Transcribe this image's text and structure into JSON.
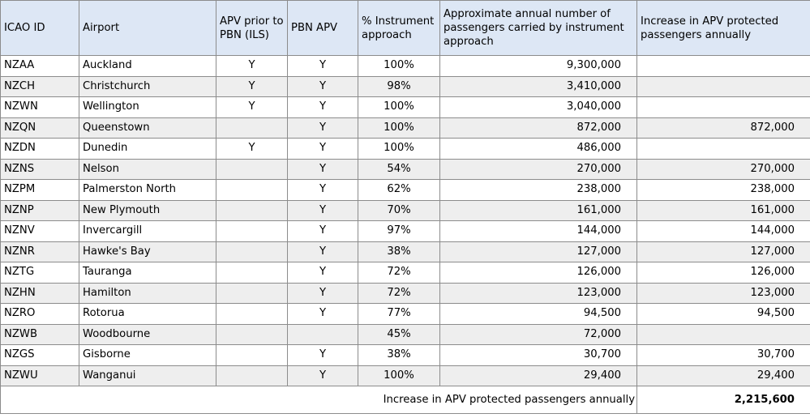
{
  "columns": [
    "ICAO ID",
    "Airport",
    "APV prior to PBN (ILS)",
    "PBN APV",
    "% Instrument approach",
    "Approximate annual number of passengers carried by instrument approach",
    "Increase in APV protected passengers annually"
  ],
  "rows": [
    [
      "NZAA",
      "Auckland",
      "Y",
      "Y",
      "100%",
      "9,300,000",
      ""
    ],
    [
      "NZCH",
      "Christchurch",
      "Y",
      "Y",
      "98%",
      "3,410,000",
      ""
    ],
    [
      "NZWN",
      "Wellington",
      "Y",
      "Y",
      "100%",
      "3,040,000",
      ""
    ],
    [
      "NZQN",
      "Queenstown",
      "",
      "Y",
      "100%",
      "872,000",
      "872,000"
    ],
    [
      "NZDN",
      "Dunedin",
      "Y",
      "Y",
      "100%",
      "486,000",
      ""
    ],
    [
      "NZNS",
      "Nelson",
      "",
      "Y",
      "54%",
      "270,000",
      "270,000"
    ],
    [
      "NZPM",
      "Palmerston North",
      "",
      "Y",
      "62%",
      "238,000",
      "238,000"
    ],
    [
      "NZNP",
      "New Plymouth",
      "",
      "Y",
      "70%",
      "161,000",
      "161,000"
    ],
    [
      "NZNV",
      "Invercargill",
      "",
      "Y",
      "97%",
      "144,000",
      "144,000"
    ],
    [
      "NZNR",
      "Hawke's Bay",
      "",
      "Y",
      "38%",
      "127,000",
      "127,000"
    ],
    [
      "NZTG",
      "Tauranga",
      "",
      "Y",
      "72%",
      "126,000",
      "126,000"
    ],
    [
      "NZHN",
      "Hamilton",
      "",
      "Y",
      "72%",
      "123,000",
      "123,000"
    ],
    [
      "NZRO",
      "Rotorua",
      "",
      "Y",
      "77%",
      "94,500",
      "94,500"
    ],
    [
      "NZWB",
      "Woodbourne",
      "",
      "",
      "45%",
      "72,000",
      ""
    ],
    [
      "NZGS",
      "Gisborne",
      "",
      "Y",
      "38%",
      "30,700",
      "30,700"
    ],
    [
      "NZWU",
      "Wanganui",
      "",
      "Y",
      "100%",
      "29,400",
      "29,400"
    ]
  ],
  "footer": {
    "label": "Increase in APV protected passengers annually",
    "total": "2,215,600"
  },
  "colors": {
    "header_bg": "#dde7f5",
    "stripe_bg": "#eeeeee",
    "border": "#8c8c8c"
  }
}
